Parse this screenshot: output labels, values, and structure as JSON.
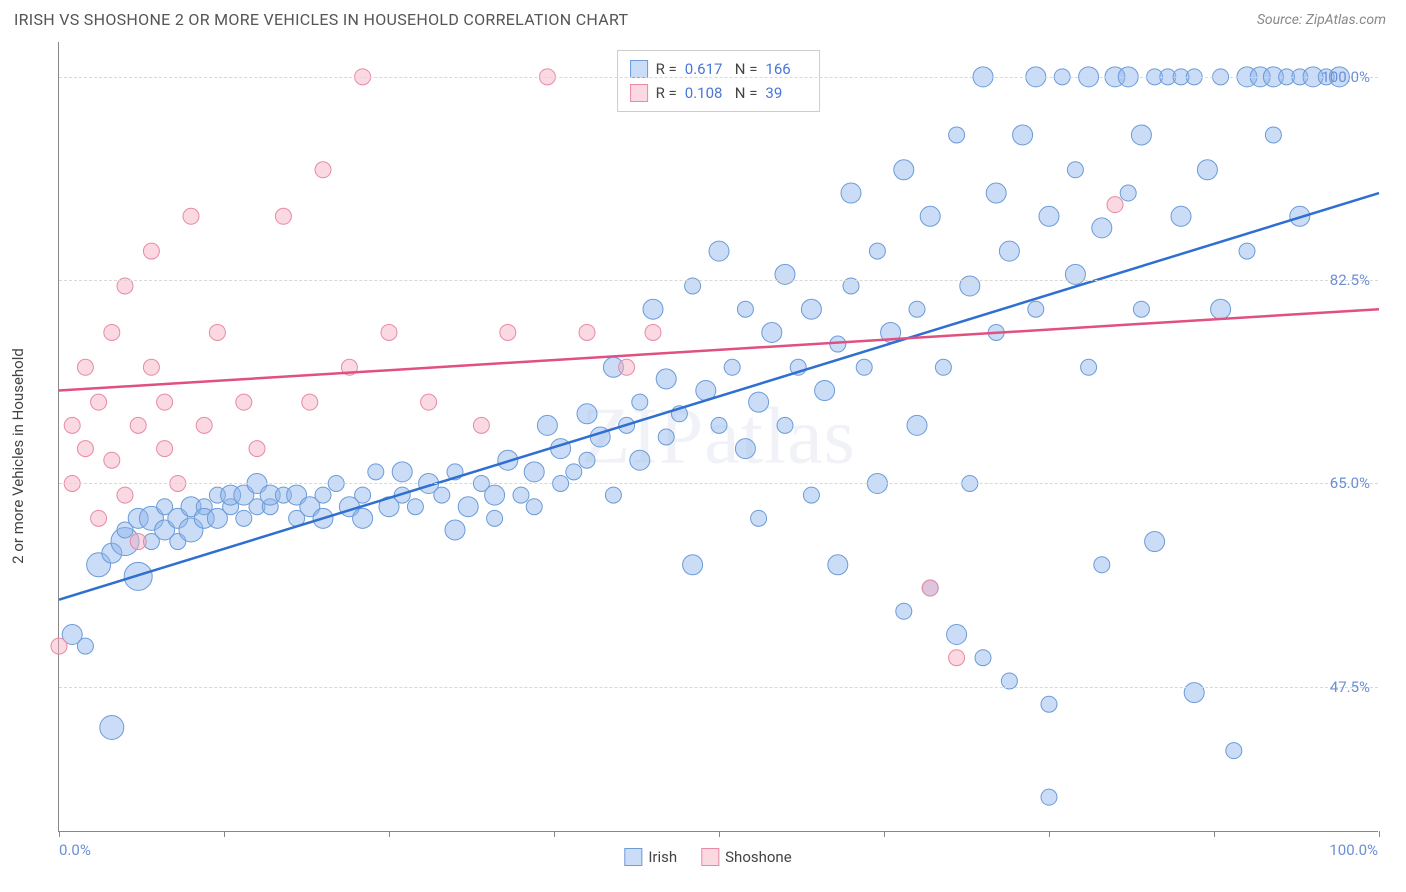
{
  "title": "IRISH VS SHOSHONE 2 OR MORE VEHICLES IN HOUSEHOLD CORRELATION CHART",
  "source": "Source: ZipAtlas.com",
  "watermark": "ZIPatlas",
  "y_axis_label": "2 or more Vehicles in Household",
  "chart": {
    "type": "scatter",
    "xlim": [
      0,
      100
    ],
    "ylim": [
      35,
      103
    ],
    "x_min_label": "0.0%",
    "x_max_label": "100.0%",
    "x_ticks": [
      0,
      12.5,
      25,
      37.5,
      50,
      62.5,
      75,
      87.5,
      100
    ],
    "y_gridlines": [
      47.5,
      65.0,
      82.5,
      100.0
    ],
    "y_tick_labels": [
      "47.5%",
      "65.0%",
      "82.5%",
      "100.0%"
    ],
    "background_color": "#ffffff",
    "grid_color": "#d8d8d8",
    "axis_color": "#888888",
    "tick_label_color": "#6b8fd6",
    "series": [
      {
        "name": "Irish",
        "fill": "rgba(140,180,235,0.45)",
        "stroke": "#6b9bd8",
        "line_color": "#2f6fd0",
        "r_value": "0.617",
        "n_value": "166",
        "trend": {
          "x1": 0,
          "y1": 55,
          "x2": 100,
          "y2": 90
        },
        "points": [
          {
            "x": 1,
            "y": 52,
            "r": 10
          },
          {
            "x": 2,
            "y": 51,
            "r": 8
          },
          {
            "x": 3,
            "y": 58,
            "r": 12
          },
          {
            "x": 4,
            "y": 44,
            "r": 12
          },
          {
            "x": 4,
            "y": 59,
            "r": 10
          },
          {
            "x": 5,
            "y": 60,
            "r": 14
          },
          {
            "x": 5,
            "y": 61,
            "r": 8
          },
          {
            "x": 6,
            "y": 62,
            "r": 10
          },
          {
            "x": 6,
            "y": 57,
            "r": 14
          },
          {
            "x": 7,
            "y": 60,
            "r": 8
          },
          {
            "x": 7,
            "y": 62,
            "r": 12
          },
          {
            "x": 8,
            "y": 61,
            "r": 10
          },
          {
            "x": 8,
            "y": 63,
            "r": 8
          },
          {
            "x": 9,
            "y": 62,
            "r": 10
          },
          {
            "x": 9,
            "y": 60,
            "r": 8
          },
          {
            "x": 10,
            "y": 63,
            "r": 10
          },
          {
            "x": 10,
            "y": 61,
            "r": 12
          },
          {
            "x": 11,
            "y": 63,
            "r": 8
          },
          {
            "x": 11,
            "y": 62,
            "r": 10
          },
          {
            "x": 12,
            "y": 64,
            "r": 8
          },
          {
            "x": 12,
            "y": 62,
            "r": 10
          },
          {
            "x": 13,
            "y": 63,
            "r": 8
          },
          {
            "x": 13,
            "y": 64,
            "r": 10
          },
          {
            "x": 14,
            "y": 62,
            "r": 8
          },
          {
            "x": 14,
            "y": 64,
            "r": 10
          },
          {
            "x": 15,
            "y": 63,
            "r": 8
          },
          {
            "x": 15,
            "y": 65,
            "r": 10
          },
          {
            "x": 16,
            "y": 63,
            "r": 8
          },
          {
            "x": 16,
            "y": 64,
            "r": 10
          },
          {
            "x": 17,
            "y": 64,
            "r": 8
          },
          {
            "x": 18,
            "y": 64,
            "r": 10
          },
          {
            "x": 18,
            "y": 62,
            "r": 8
          },
          {
            "x": 19,
            "y": 63,
            "r": 10
          },
          {
            "x": 20,
            "y": 64,
            "r": 8
          },
          {
            "x": 20,
            "y": 62,
            "r": 10
          },
          {
            "x": 21,
            "y": 65,
            "r": 8
          },
          {
            "x": 22,
            "y": 63,
            "r": 10
          },
          {
            "x": 23,
            "y": 64,
            "r": 8
          },
          {
            "x": 23,
            "y": 62,
            "r": 10
          },
          {
            "x": 24,
            "y": 66,
            "r": 8
          },
          {
            "x": 25,
            "y": 63,
            "r": 10
          },
          {
            "x": 26,
            "y": 64,
            "r": 8
          },
          {
            "x": 26,
            "y": 66,
            "r": 10
          },
          {
            "x": 27,
            "y": 63,
            "r": 8
          },
          {
            "x": 28,
            "y": 65,
            "r": 10
          },
          {
            "x": 29,
            "y": 64,
            "r": 8
          },
          {
            "x": 30,
            "y": 61,
            "r": 10
          },
          {
            "x": 30,
            "y": 66,
            "r": 8
          },
          {
            "x": 31,
            "y": 63,
            "r": 10
          },
          {
            "x": 32,
            "y": 65,
            "r": 8
          },
          {
            "x": 33,
            "y": 64,
            "r": 10
          },
          {
            "x": 33,
            "y": 62,
            "r": 8
          },
          {
            "x": 34,
            "y": 67,
            "r": 10
          },
          {
            "x": 35,
            "y": 64,
            "r": 8
          },
          {
            "x": 36,
            "y": 66,
            "r": 10
          },
          {
            "x": 36,
            "y": 63,
            "r": 8
          },
          {
            "x": 37,
            "y": 70,
            "r": 10
          },
          {
            "x": 38,
            "y": 65,
            "r": 8
          },
          {
            "x": 38,
            "y": 68,
            "r": 10
          },
          {
            "x": 39,
            "y": 66,
            "r": 8
          },
          {
            "x": 40,
            "y": 71,
            "r": 10
          },
          {
            "x": 40,
            "y": 67,
            "r": 8
          },
          {
            "x": 41,
            "y": 69,
            "r": 10
          },
          {
            "x": 42,
            "y": 64,
            "r": 8
          },
          {
            "x": 42,
            "y": 75,
            "r": 10
          },
          {
            "x": 43,
            "y": 70,
            "r": 8
          },
          {
            "x": 44,
            "y": 67,
            "r": 10
          },
          {
            "x": 44,
            "y": 72,
            "r": 8
          },
          {
            "x": 45,
            "y": 80,
            "r": 10
          },
          {
            "x": 46,
            "y": 69,
            "r": 8
          },
          {
            "x": 46,
            "y": 74,
            "r": 10
          },
          {
            "x": 47,
            "y": 71,
            "r": 8
          },
          {
            "x": 48,
            "y": 58,
            "r": 10
          },
          {
            "x": 48,
            "y": 82,
            "r": 8
          },
          {
            "x": 49,
            "y": 73,
            "r": 10
          },
          {
            "x": 50,
            "y": 70,
            "r": 8
          },
          {
            "x": 50,
            "y": 85,
            "r": 10
          },
          {
            "x": 51,
            "y": 75,
            "r": 8
          },
          {
            "x": 52,
            "y": 68,
            "r": 10
          },
          {
            "x": 52,
            "y": 80,
            "r": 8
          },
          {
            "x": 53,
            "y": 72,
            "r": 10
          },
          {
            "x": 53,
            "y": 62,
            "r": 8
          },
          {
            "x": 54,
            "y": 78,
            "r": 10
          },
          {
            "x": 55,
            "y": 70,
            "r": 8
          },
          {
            "x": 55,
            "y": 83,
            "r": 10
          },
          {
            "x": 56,
            "y": 75,
            "r": 8
          },
          {
            "x": 57,
            "y": 80,
            "r": 10
          },
          {
            "x": 57,
            "y": 64,
            "r": 8
          },
          {
            "x": 58,
            "y": 73,
            "r": 10
          },
          {
            "x": 59,
            "y": 77,
            "r": 8
          },
          {
            "x": 59,
            "y": 58,
            "r": 10
          },
          {
            "x": 60,
            "y": 82,
            "r": 8
          },
          {
            "x": 60,
            "y": 90,
            "r": 10
          },
          {
            "x": 61,
            "y": 75,
            "r": 8
          },
          {
            "x": 62,
            "y": 65,
            "r": 10
          },
          {
            "x": 62,
            "y": 85,
            "r": 8
          },
          {
            "x": 63,
            "y": 78,
            "r": 10
          },
          {
            "x": 64,
            "y": 54,
            "r": 8
          },
          {
            "x": 64,
            "y": 92,
            "r": 10
          },
          {
            "x": 65,
            "y": 80,
            "r": 8
          },
          {
            "x": 65,
            "y": 70,
            "r": 10
          },
          {
            "x": 66,
            "y": 56,
            "r": 8
          },
          {
            "x": 66,
            "y": 88,
            "r": 10
          },
          {
            "x": 67,
            "y": 75,
            "r": 8
          },
          {
            "x": 68,
            "y": 52,
            "r": 10
          },
          {
            "x": 68,
            "y": 95,
            "r": 8
          },
          {
            "x": 69,
            "y": 82,
            "r": 10
          },
          {
            "x": 69,
            "y": 65,
            "r": 8
          },
          {
            "x": 70,
            "y": 100,
            "r": 10
          },
          {
            "x": 70,
            "y": 50,
            "r": 8
          },
          {
            "x": 71,
            "y": 90,
            "r": 10
          },
          {
            "x": 71,
            "y": 78,
            "r": 8
          },
          {
            "x": 72,
            "y": 85,
            "r": 10
          },
          {
            "x": 72,
            "y": 48,
            "r": 8
          },
          {
            "x": 73,
            "y": 95,
            "r": 10
          },
          {
            "x": 74,
            "y": 80,
            "r": 8
          },
          {
            "x": 74,
            "y": 100,
            "r": 10
          },
          {
            "x": 75,
            "y": 46,
            "r": 8
          },
          {
            "x": 75,
            "y": 88,
            "r": 10
          },
          {
            "x": 76,
            "y": 100,
            "r": 8
          },
          {
            "x": 77,
            "y": 83,
            "r": 10
          },
          {
            "x": 77,
            "y": 92,
            "r": 8
          },
          {
            "x": 78,
            "y": 100,
            "r": 10
          },
          {
            "x": 78,
            "y": 75,
            "r": 8
          },
          {
            "x": 79,
            "y": 87,
            "r": 10
          },
          {
            "x": 79,
            "y": 58,
            "r": 8
          },
          {
            "x": 80,
            "y": 100,
            "r": 10
          },
          {
            "x": 81,
            "y": 90,
            "r": 8
          },
          {
            "x": 81,
            "y": 100,
            "r": 10
          },
          {
            "x": 82,
            "y": 80,
            "r": 8
          },
          {
            "x": 82,
            "y": 95,
            "r": 10
          },
          {
            "x": 83,
            "y": 100,
            "r": 8
          },
          {
            "x": 83,
            "y": 60,
            "r": 10
          },
          {
            "x": 84,
            "y": 100,
            "r": 8
          },
          {
            "x": 85,
            "y": 88,
            "r": 10
          },
          {
            "x": 85,
            "y": 100,
            "r": 8
          },
          {
            "x": 86,
            "y": 47,
            "r": 10
          },
          {
            "x": 86,
            "y": 100,
            "r": 8
          },
          {
            "x": 87,
            "y": 92,
            "r": 10
          },
          {
            "x": 88,
            "y": 100,
            "r": 8
          },
          {
            "x": 88,
            "y": 80,
            "r": 10
          },
          {
            "x": 89,
            "y": 42,
            "r": 8
          },
          {
            "x": 90,
            "y": 100,
            "r": 10
          },
          {
            "x": 90,
            "y": 85,
            "r": 8
          },
          {
            "x": 91,
            "y": 100,
            "r": 10
          },
          {
            "x": 92,
            "y": 95,
            "r": 8
          },
          {
            "x": 92,
            "y": 100,
            "r": 10
          },
          {
            "x": 93,
            "y": 100,
            "r": 8
          },
          {
            "x": 94,
            "y": 88,
            "r": 10
          },
          {
            "x": 94,
            "y": 100,
            "r": 8
          },
          {
            "x": 95,
            "y": 100,
            "r": 10
          },
          {
            "x": 96,
            "y": 100,
            "r": 8
          },
          {
            "x": 97,
            "y": 100,
            "r": 10
          },
          {
            "x": 75,
            "y": 38,
            "r": 8
          }
        ]
      },
      {
        "name": "Shoshone",
        "fill": "rgba(245,170,190,0.45)",
        "stroke": "#e88aa3",
        "line_color": "#e05080",
        "r_value": "0.108",
        "n_value": "39",
        "trend": {
          "x1": 0,
          "y1": 73,
          "x2": 100,
          "y2": 80
        },
        "points": [
          {
            "x": 0,
            "y": 51,
            "r": 8
          },
          {
            "x": 1,
            "y": 65,
            "r": 8
          },
          {
            "x": 1,
            "y": 70,
            "r": 8
          },
          {
            "x": 2,
            "y": 68,
            "r": 8
          },
          {
            "x": 2,
            "y": 75,
            "r": 8
          },
          {
            "x": 3,
            "y": 62,
            "r": 8
          },
          {
            "x": 3,
            "y": 72,
            "r": 8
          },
          {
            "x": 4,
            "y": 67,
            "r": 8
          },
          {
            "x": 4,
            "y": 78,
            "r": 8
          },
          {
            "x": 5,
            "y": 64,
            "r": 8
          },
          {
            "x": 5,
            "y": 82,
            "r": 8
          },
          {
            "x": 6,
            "y": 70,
            "r": 8
          },
          {
            "x": 6,
            "y": 60,
            "r": 8
          },
          {
            "x": 7,
            "y": 75,
            "r": 8
          },
          {
            "x": 7,
            "y": 85,
            "r": 8
          },
          {
            "x": 8,
            "y": 68,
            "r": 8
          },
          {
            "x": 8,
            "y": 72,
            "r": 8
          },
          {
            "x": 9,
            "y": 65,
            "r": 8
          },
          {
            "x": 10,
            "y": 88,
            "r": 8
          },
          {
            "x": 11,
            "y": 70,
            "r": 8
          },
          {
            "x": 12,
            "y": 78,
            "r": 8
          },
          {
            "x": 14,
            "y": 72,
            "r": 8
          },
          {
            "x": 15,
            "y": 68,
            "r": 8
          },
          {
            "x": 17,
            "y": 88,
            "r": 8
          },
          {
            "x": 19,
            "y": 72,
            "r": 8
          },
          {
            "x": 20,
            "y": 92,
            "r": 8
          },
          {
            "x": 22,
            "y": 75,
            "r": 8
          },
          {
            "x": 23,
            "y": 100,
            "r": 8
          },
          {
            "x": 25,
            "y": 78,
            "r": 8
          },
          {
            "x": 28,
            "y": 72,
            "r": 8
          },
          {
            "x": 32,
            "y": 70,
            "r": 8
          },
          {
            "x": 34,
            "y": 78,
            "r": 8
          },
          {
            "x": 37,
            "y": 100,
            "r": 8
          },
          {
            "x": 40,
            "y": 78,
            "r": 8
          },
          {
            "x": 43,
            "y": 75,
            "r": 8
          },
          {
            "x": 45,
            "y": 78,
            "r": 8
          },
          {
            "x": 66,
            "y": 56,
            "r": 8
          },
          {
            "x": 68,
            "y": 50,
            "r": 8
          },
          {
            "x": 80,
            "y": 89,
            "r": 8
          }
        ]
      }
    ]
  },
  "legend_labels": {
    "irish": "Irish",
    "shoshone": "Shoshone"
  },
  "stat_labels": {
    "r": "R =",
    "n": "N ="
  }
}
